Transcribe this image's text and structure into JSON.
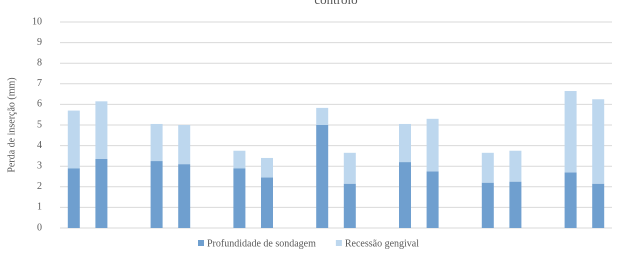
{
  "chart_data": {
    "type": "stacked_bar",
    "title": "controlo",
    "y_label": "Perda de inserção (mm)",
    "categories": [
      null,
      null,
      null,
      null,
      null,
      null,
      null,
      null,
      null,
      null,
      null,
      null,
      null,
      null,
      null,
      null,
      null,
      null,
      null,
      null
    ],
    "series": [
      {
        "name": "Profundidade de sondagem",
        "color": "#6f9fcf",
        "values": [
          2.9,
          3.35,
          null,
          3.25,
          3.1,
          null,
          2.9,
          2.45,
          null,
          5.0,
          2.15,
          null,
          3.2,
          2.75,
          null,
          2.2,
          2.25,
          null,
          2.7,
          2.15
        ]
      },
      {
        "name": "Recessão gengival",
        "color": "#bdd7ee",
        "values": [
          2.8,
          2.8,
          null,
          1.8,
          1.9,
          null,
          0.85,
          0.95,
          null,
          0.83,
          1.5,
          null,
          1.85,
          2.55,
          null,
          1.45,
          1.5,
          null,
          3.95,
          4.1
        ]
      }
    ],
    "ylim": [
      0,
      10
    ],
    "yticks": [
      0,
      1,
      2,
      3,
      4,
      5,
      6,
      7,
      8,
      9,
      10
    ],
    "grid": true,
    "legend": "bottom"
  }
}
